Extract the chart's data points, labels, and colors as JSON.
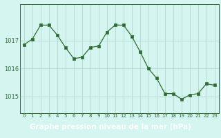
{
  "hours": [
    0,
    1,
    2,
    3,
    4,
    5,
    6,
    7,
    8,
    9,
    10,
    11,
    12,
    13,
    14,
    15,
    16,
    17,
    18,
    19,
    20,
    21,
    22,
    23
  ],
  "pressure": [
    1016.85,
    1017.05,
    1017.55,
    1017.55,
    1017.2,
    1016.75,
    1016.35,
    1016.4,
    1016.75,
    1016.8,
    1017.3,
    1017.55,
    1017.55,
    1017.15,
    1016.6,
    1016.0,
    1015.65,
    1015.1,
    1015.1,
    1014.9,
    1015.05,
    1015.1,
    1015.45,
    1015.4
  ],
  "line_color": "#2d6e2d",
  "marker_color": "#2d6e2d",
  "bg_color": "#d4f5f0",
  "grid_color": "#b0d8d0",
  "footer_bg": "#2d6e2d",
  "footer_text": "Graphe pression niveau de la mer (hPa)",
  "footer_color": "#ffffff",
  "ylim": [
    1014.4,
    1018.3
  ],
  "yticks": [
    1015,
    1016,
    1017
  ],
  "label_fontsize": 7.5
}
